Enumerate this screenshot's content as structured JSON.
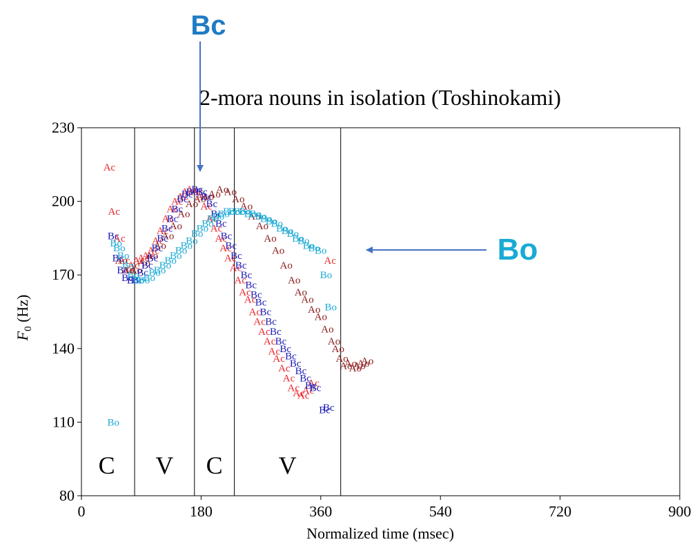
{
  "chart_data": {
    "type": "scatter",
    "title": "2-mora nouns in isolation (Toshinokami)",
    "xlabel": "Normalized time (msec)",
    "ylabel_main": "F",
    "ylabel_sub": "0",
    "ylabel_unit": " (Hz)",
    "xlim": [
      0,
      900
    ],
    "ylim": [
      80,
      230
    ],
    "xticks": [
      0,
      180,
      360,
      540,
      720,
      900
    ],
    "yticks": [
      80,
      110,
      140,
      170,
      200,
      230
    ],
    "xtick_labels": [
      "0",
      "180",
      "360",
      "540",
      "720",
      "900"
    ],
    "ytick_labels": [
      "80",
      "110",
      "140",
      "170",
      "200",
      "230"
    ],
    "grid": false,
    "segment_boundaries": [
      80,
      170,
      230,
      390
    ],
    "segment_labels": [
      {
        "text": "C",
        "x": 38,
        "y": 89
      },
      {
        "text": "V",
        "x": 125,
        "y": 89
      },
      {
        "text": "C",
        "x": 200,
        "y": 89
      },
      {
        "text": "V",
        "x": 310,
        "y": 89
      }
    ],
    "series": [
      {
        "name": "Ac",
        "color": "#e8262b",
        "points": [
          [
            42,
            214
          ],
          [
            49,
            196
          ],
          [
            57,
            185
          ],
          [
            64,
            176
          ],
          [
            71,
            172
          ],
          [
            78,
            174
          ],
          [
            86,
            176
          ],
          [
            93,
            177
          ],
          [
            100,
            178
          ],
          [
            108,
            180
          ],
          [
            115,
            184
          ],
          [
            122,
            188
          ],
          [
            130,
            193
          ],
          [
            137,
            197
          ],
          [
            144,
            200
          ],
          [
            152,
            202
          ],
          [
            159,
            204
          ],
          [
            166,
            205
          ],
          [
            174,
            204
          ],
          [
            181,
            202
          ],
          [
            188,
            198
          ],
          [
            196,
            193
          ],
          [
            203,
            189
          ],
          [
            210,
            185
          ],
          [
            217,
            181
          ],
          [
            224,
            177
          ],
          [
            232,
            173
          ],
          [
            239,
            168
          ],
          [
            246,
            163
          ],
          [
            254,
            160
          ],
          [
            261,
            155
          ],
          [
            268,
            151
          ],
          [
            275,
            147
          ],
          [
            283,
            143
          ],
          [
            290,
            139
          ],
          [
            297,
            136
          ],
          [
            305,
            132
          ],
          [
            312,
            128
          ],
          [
            319,
            124
          ],
          [
            327,
            122
          ],
          [
            334,
            121
          ],
          [
            341,
            123
          ],
          [
            349,
            126
          ],
          [
            374,
            176
          ]
        ]
      },
      {
        "name": "Ao",
        "color": "#8b1a1a",
        "points": [
          [
            60,
            176
          ],
          [
            70,
            172
          ],
          [
            82,
            172
          ],
          [
            94,
            175
          ],
          [
            106,
            178
          ],
          [
            118,
            182
          ],
          [
            130,
            186
          ],
          [
            142,
            190
          ],
          [
            154,
            195
          ],
          [
            166,
            199
          ],
          [
            178,
            201
          ],
          [
            190,
            202
          ],
          [
            200,
            203
          ],
          [
            212,
            205
          ],
          [
            224,
            204
          ],
          [
            236,
            201
          ],
          [
            248,
            198
          ],
          [
            260,
            194
          ],
          [
            272,
            190
          ],
          [
            284,
            185
          ],
          [
            296,
            180
          ],
          [
            308,
            174
          ],
          [
            320,
            168
          ],
          [
            330,
            163
          ],
          [
            340,
            160
          ],
          [
            350,
            156
          ],
          [
            360,
            153
          ],
          [
            370,
            148
          ],
          [
            380,
            143
          ],
          [
            386,
            140
          ],
          [
            392,
            136
          ],
          [
            398,
            133
          ],
          [
            405,
            134
          ],
          [
            412,
            132
          ],
          [
            418,
            133
          ],
          [
            424,
            134
          ],
          [
            430,
            135
          ]
        ]
      },
      {
        "name": "Bc",
        "color": "#1a1ab4",
        "points": [
          [
            48,
            186
          ],
          [
            55,
            177
          ],
          [
            62,
            172
          ],
          [
            69,
            169
          ],
          [
            77,
            168
          ],
          [
            84,
            168
          ],
          [
            92,
            171
          ],
          [
            99,
            174
          ],
          [
            107,
            177
          ],
          [
            114,
            181
          ],
          [
            122,
            185
          ],
          [
            129,
            189
          ],
          [
            137,
            193
          ],
          [
            144,
            197
          ],
          [
            152,
            201
          ],
          [
            159,
            203
          ],
          [
            166,
            204
          ],
          [
            174,
            205
          ],
          [
            181,
            204
          ],
          [
            188,
            202
          ],
          [
            196,
            199
          ],
          [
            203,
            195
          ],
          [
            210,
            191
          ],
          [
            218,
            186
          ],
          [
            225,
            182
          ],
          [
            233,
            178
          ],
          [
            240,
            174
          ],
          [
            248,
            170
          ],
          [
            255,
            166
          ],
          [
            263,
            162
          ],
          [
            270,
            159
          ],
          [
            277,
            155
          ],
          [
            285,
            151
          ],
          [
            292,
            147
          ],
          [
            300,
            143
          ],
          [
            307,
            140
          ],
          [
            315,
            137
          ],
          [
            322,
            134
          ],
          [
            330,
            131
          ],
          [
            337,
            128
          ],
          [
            345,
            125
          ],
          [
            352,
            124
          ],
          [
            366,
            115
          ],
          [
            372,
            116
          ]
        ]
      },
      {
        "name": "Bo",
        "color": "#1aaad4",
        "points": [
          [
            48,
            110
          ],
          [
            52,
            183
          ],
          [
            57,
            181
          ],
          [
            63,
            178
          ],
          [
            70,
            174
          ],
          [
            78,
            170
          ],
          [
            86,
            168
          ],
          [
            94,
            168
          ],
          [
            102,
            169
          ],
          [
            110,
            171
          ],
          [
            118,
            172
          ],
          [
            126,
            174
          ],
          [
            134,
            176
          ],
          [
            142,
            178
          ],
          [
            150,
            180
          ],
          [
            158,
            182
          ],
          [
            166,
            184
          ],
          [
            174,
            187
          ],
          [
            182,
            189
          ],
          [
            190,
            191
          ],
          [
            198,
            193
          ],
          [
            206,
            194
          ],
          [
            214,
            195
          ],
          [
            222,
            196
          ],
          [
            230,
            196
          ],
          [
            238,
            196
          ],
          [
            246,
            196
          ],
          [
            254,
            195
          ],
          [
            262,
            195
          ],
          [
            270,
            194
          ],
          [
            278,
            193
          ],
          [
            286,
            192
          ],
          [
            294,
            191
          ],
          [
            302,
            189
          ],
          [
            310,
            188
          ],
          [
            318,
            187
          ],
          [
            326,
            185
          ],
          [
            334,
            184
          ],
          [
            342,
            182
          ],
          [
            350,
            181
          ],
          [
            360,
            180
          ],
          [
            368,
            170
          ],
          [
            375,
            157
          ]
        ]
      }
    ],
    "annotations": [
      {
        "text": "Bc",
        "color": "#1f7bc4",
        "arrow_tip": [
          175,
          210
        ]
      },
      {
        "text": "Bo",
        "color": "#1aaad4",
        "arrow_tip": [
          430,
          180
        ]
      }
    ]
  }
}
